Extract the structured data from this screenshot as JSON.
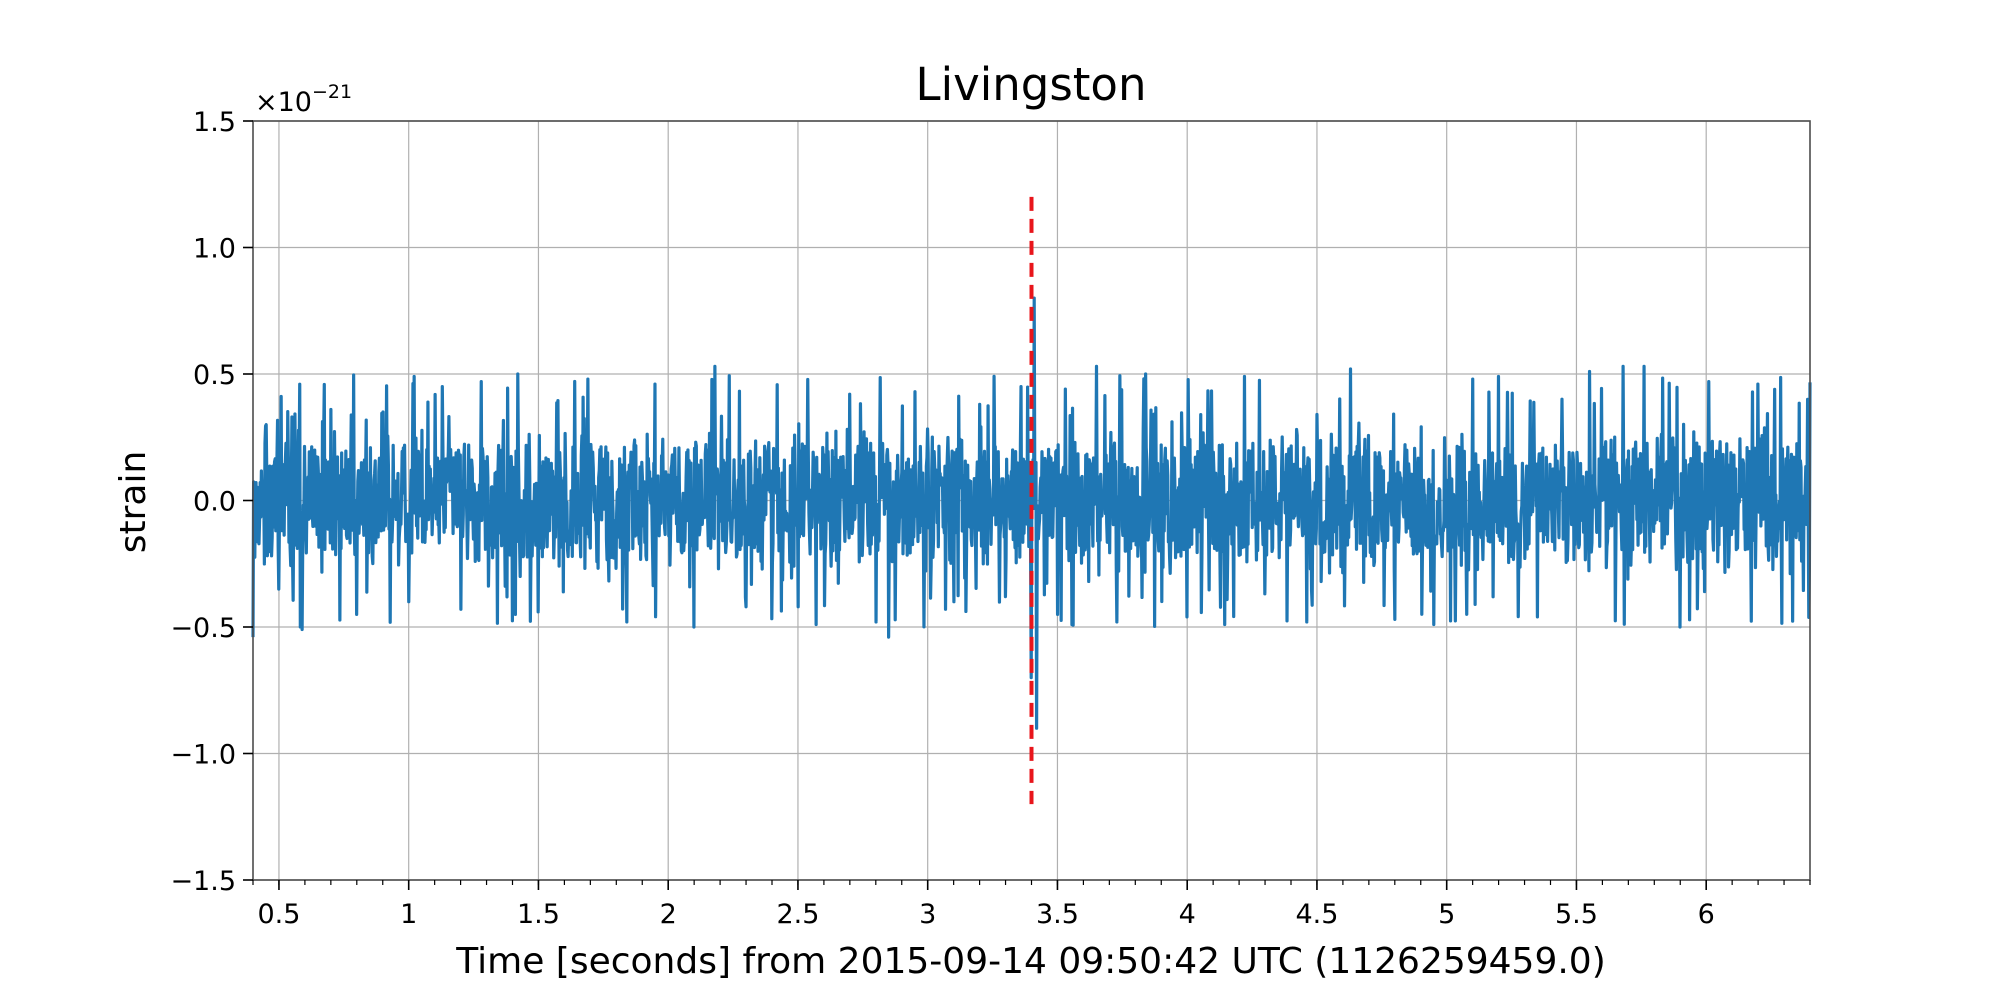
{
  "chart_data": {
    "type": "line",
    "title": "Livingston",
    "xlabel": "Time [seconds] from 2015-09-14 09:50:42 UTC (1126259459.0)",
    "ylabel": "strain",
    "offset_text": {
      "base": "×10",
      "exponent": "−21"
    },
    "xlim": [
      0.4,
      6.4
    ],
    "ylim": [
      -1.5,
      1.5
    ],
    "y_scale_factor": "1e-21",
    "grid": true,
    "x_ticks": [
      {
        "value": 0.5,
        "label": "0.5"
      },
      {
        "value": 1,
        "label": "1"
      },
      {
        "value": 1.5,
        "label": "1.5"
      },
      {
        "value": 2,
        "label": "2"
      },
      {
        "value": 2.5,
        "label": "2.5"
      },
      {
        "value": 3,
        "label": "3"
      },
      {
        "value": 3.5,
        "label": "3.5"
      },
      {
        "value": 4,
        "label": "4"
      },
      {
        "value": 4.5,
        "label": "4.5"
      },
      {
        "value": 5,
        "label": "5"
      },
      {
        "value": 5.5,
        "label": "5.5"
      },
      {
        "value": 6,
        "label": "6"
      }
    ],
    "x_minor_step": 0.1,
    "y_ticks": [
      {
        "value": -1.5,
        "label": "−1.5"
      },
      {
        "value": -1.0,
        "label": "−1.0"
      },
      {
        "value": -0.5,
        "label": "−0.5"
      },
      {
        "value": 0.0,
        "label": "0.0"
      },
      {
        "value": 0.5,
        "label": "0.5"
      },
      {
        "value": 1.0,
        "label": "1.0"
      },
      {
        "value": 1.5,
        "label": "1.5"
      }
    ],
    "series": [
      {
        "color": "#1f77b4",
        "description": "noise-dominated strain timeseries",
        "noise_amplitude_typical": 0.3,
        "noise_amplitude_peak": 0.5,
        "points": [
          [
            0.4,
            -0.54
          ],
          [
            0.45,
            0.3
          ],
          [
            0.5,
            -0.35
          ],
          [
            0.55,
            0.33
          ],
          [
            0.59,
            -0.51
          ],
          [
            0.7,
            0.36
          ],
          [
            0.8,
            -0.45
          ],
          [
            0.9,
            0.35
          ],
          [
            1.0,
            -0.4
          ],
          [
            1.02,
            0.49
          ],
          [
            1.13,
            0.45
          ],
          [
            1.2,
            -0.43
          ],
          [
            1.28,
            0.47
          ],
          [
            1.42,
            0.5
          ],
          [
            1.5,
            -0.44
          ],
          [
            1.69,
            0.48
          ],
          [
            1.84,
            -0.48
          ],
          [
            1.95,
            0.46
          ],
          [
            2.1,
            -0.5
          ],
          [
            2.18,
            0.53
          ],
          [
            2.3,
            -0.42
          ],
          [
            2.5,
            -0.42
          ],
          [
            2.57,
            -0.49
          ],
          [
            2.7,
            0.42
          ],
          [
            2.8,
            -0.48
          ],
          [
            2.85,
            -0.54
          ],
          [
            2.95,
            0.43
          ],
          [
            3.1,
            -0.4
          ],
          [
            3.2,
            0.38
          ],
          [
            3.3,
            -0.38
          ],
          [
            3.36,
            0.45
          ],
          [
            3.4,
            -0.7
          ],
          [
            3.41,
            0.8
          ],
          [
            3.42,
            -0.9
          ],
          [
            3.5,
            -0.45
          ],
          [
            3.65,
            0.53
          ],
          [
            3.73,
            -0.48
          ],
          [
            3.84,
            0.5
          ],
          [
            4.0,
            -0.46
          ],
          [
            4.22,
            0.49
          ],
          [
            4.46,
            -0.48
          ],
          [
            4.63,
            0.52
          ],
          [
            4.8,
            -0.47
          ],
          [
            4.95,
            -0.49
          ],
          [
            5.1,
            0.48
          ],
          [
            5.2,
            0.49
          ],
          [
            5.35,
            -0.46
          ],
          [
            5.55,
            0.51
          ],
          [
            5.68,
            0.53
          ],
          [
            5.76,
            0.53
          ],
          [
            5.9,
            -0.5
          ],
          [
            6.01,
            0.47
          ],
          [
            6.2,
            0.46
          ],
          [
            6.39,
            0.4
          ]
        ]
      }
    ],
    "event_marker": {
      "type": "vertical-dashed-line",
      "color": "#e8151b",
      "x": 3.4,
      "y_range": [
        -1.2,
        1.2
      ]
    }
  }
}
